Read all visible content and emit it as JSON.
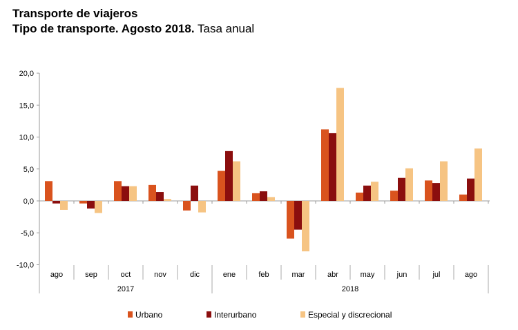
{
  "chart_data": {
    "type": "bar",
    "title": "Transporte de viajeros",
    "subtitle_bold": "Tipo de transporte. Agosto 2018.",
    "subtitle_normal": "Tasa anual",
    "categories": [
      "ago",
      "sep",
      "oct",
      "nov",
      "dic",
      "ene",
      "feb",
      "mar",
      "abr",
      "may",
      "jun",
      "jul",
      "ago"
    ],
    "year_groups": [
      {
        "label": "2017",
        "count": 5
      },
      {
        "label": "2018",
        "count": 8
      }
    ],
    "series": [
      {
        "name": "Urbano",
        "color": "#d9531e",
        "values": [
          3.1,
          -0.4,
          3.1,
          2.5,
          -1.5,
          4.7,
          1.2,
          -5.9,
          11.2,
          1.3,
          1.6,
          3.2,
          1.0
        ]
      },
      {
        "name": "Interurbano",
        "color": "#8b0e0e",
        "values": [
          -0.4,
          -1.2,
          2.3,
          1.4,
          2.4,
          7.8,
          1.5,
          -4.5,
          10.6,
          2.4,
          3.6,
          2.8,
          3.5
        ]
      },
      {
        "name": "Especial y discrecional",
        "color": "#f6c483",
        "values": [
          -1.4,
          -1.9,
          2.3,
          0.3,
          -1.8,
          6.2,
          0.6,
          -7.9,
          17.7,
          3.0,
          5.1,
          6.2,
          8.2
        ]
      }
    ],
    "ylim": [
      -10,
      20
    ],
    "yticks": [
      20,
      15,
      10,
      5,
      0,
      -5,
      -10
    ],
    "ytick_labels": [
      "20,0",
      "15,0",
      "10,0",
      "5,0",
      "0,0",
      "-5,0",
      "-10,0"
    ],
    "xlabel": "",
    "ylabel": "",
    "legend_position": "bottom",
    "grid": false
  }
}
